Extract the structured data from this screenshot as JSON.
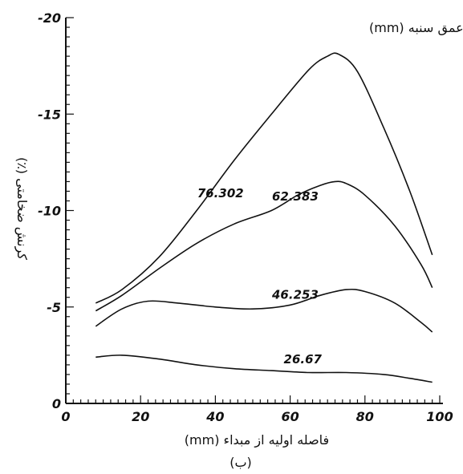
{
  "chart_data": {
    "type": "line",
    "legend_title": "عمق سنبه (mm)",
    "xlabel": "فاصله اولیه از مبداء (mm)",
    "ylabel": "کرنش ضخامتی (٪)",
    "caption": "(ب)",
    "xlim": [
      0,
      100
    ],
    "ylim": [
      0,
      -20
    ],
    "x_ticks": [
      0,
      20,
      40,
      60,
      80,
      100
    ],
    "y_ticks": [
      0,
      -5,
      -10,
      -15,
      -20
    ],
    "x_tick_labels": [
      "0",
      "20",
      "40",
      "60",
      "80",
      "100"
    ],
    "y_tick_labels": [
      "0",
      "-5",
      "-10",
      "-15",
      "-20"
    ],
    "grid": false,
    "series": [
      {
        "name": "76.302",
        "x": [
          8,
          15,
          25,
          35,
          45,
          55,
          65,
          70,
          73,
          78,
          85,
          92,
          98
        ],
        "y": [
          -5.2,
          -5.9,
          -7.6,
          -10.0,
          -12.6,
          -15.0,
          -17.3,
          -18.0,
          -18.1,
          -17.2,
          -14.3,
          -11.0,
          -7.7
        ]
      },
      {
        "name": "62.383",
        "x": [
          8,
          15,
          25,
          35,
          45,
          55,
          62,
          68,
          72,
          75,
          80,
          88,
          95,
          98
        ],
        "y": [
          -4.8,
          -5.6,
          -7.0,
          -8.3,
          -9.3,
          -10.0,
          -10.8,
          -11.3,
          -11.5,
          -11.4,
          -10.8,
          -9.2,
          -7.2,
          -6.0
        ]
      },
      {
        "name": "46.253",
        "x": [
          8,
          15,
          22,
          30,
          40,
          50,
          60,
          68,
          75,
          80,
          88,
          95,
          98
        ],
        "y": [
          -4.0,
          -4.9,
          -5.3,
          -5.2,
          -5.0,
          -4.9,
          -5.1,
          -5.6,
          -5.9,
          -5.8,
          -5.2,
          -4.2,
          -3.7
        ]
      },
      {
        "name": "26.67",
        "x": [
          8,
          15,
          25,
          35,
          45,
          55,
          65,
          75,
          85,
          92,
          98
        ],
        "y": [
          -2.4,
          -2.5,
          -2.3,
          -2.0,
          -1.8,
          -1.7,
          -1.6,
          -1.6,
          -1.5,
          -1.3,
          -1.1
        ]
      }
    ]
  }
}
